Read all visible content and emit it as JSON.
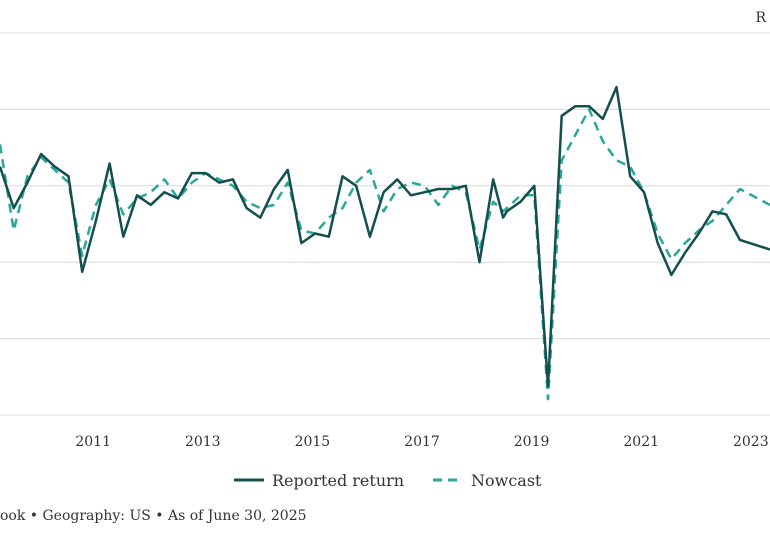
{
  "chart_data": {
    "type": "line",
    "corner_label": "R",
    "x_tick_labels": [
      "2011",
      "2013",
      "2015",
      "2017",
      "2019",
      "2021",
      "2023"
    ],
    "xlim": [
      2009.8,
      2023.85
    ],
    "ylim": [
      -6,
      6
    ],
    "grid": "horizontal",
    "legend_position": "bottom-center",
    "series": [
      {
        "name": "Reported return",
        "color": "#134f4d",
        "style": "solid",
        "points": [
          [
            2009.8,
            1.8
          ],
          [
            2010.05,
            0.5
          ],
          [
            2010.3,
            1.3
          ],
          [
            2010.55,
            2.2
          ],
          [
            2010.8,
            1.8
          ],
          [
            2011.05,
            1.5
          ],
          [
            2011.3,
            -1.5
          ],
          [
            2011.55,
            0.1
          ],
          [
            2011.8,
            1.9
          ],
          [
            2012.05,
            -0.4
          ],
          [
            2012.3,
            0.9
          ],
          [
            2012.55,
            0.6
          ],
          [
            2012.8,
            1.0
          ],
          [
            2013.05,
            0.8
          ],
          [
            2013.3,
            1.6
          ],
          [
            2013.55,
            1.6
          ],
          [
            2013.8,
            1.3
          ],
          [
            2014.05,
            1.4
          ],
          [
            2014.3,
            0.5
          ],
          [
            2014.55,
            0.2
          ],
          [
            2014.8,
            1.1
          ],
          [
            2015.05,
            1.7
          ],
          [
            2015.3,
            -0.6
          ],
          [
            2015.55,
            -0.3
          ],
          [
            2015.8,
            -0.4
          ],
          [
            2016.05,
            1.5
          ],
          [
            2016.3,
            1.2
          ],
          [
            2016.55,
            -0.4
          ],
          [
            2016.8,
            1.0
          ],
          [
            2017.05,
            1.4
          ],
          [
            2017.3,
            0.9
          ],
          [
            2017.55,
            1.0
          ],
          [
            2017.8,
            1.1
          ],
          [
            2018.05,
            1.1
          ],
          [
            2018.3,
            1.2
          ],
          [
            2018.55,
            -1.2
          ],
          [
            2018.8,
            1.4
          ],
          [
            2018.98,
            0.2
          ],
          [
            2019.05,
            0.4
          ],
          [
            2019.3,
            0.7
          ],
          [
            2019.55,
            1.2
          ],
          [
            2019.8,
            -5.1
          ],
          [
            2020.05,
            3.4
          ],
          [
            2020.3,
            3.7
          ],
          [
            2020.55,
            3.7
          ],
          [
            2020.8,
            3.3
          ],
          [
            2021.05,
            4.3
          ],
          [
            2021.3,
            1.5
          ],
          [
            2021.55,
            1.0
          ],
          [
            2021.8,
            -0.6
          ],
          [
            2022.05,
            -1.6
          ],
          [
            2022.3,
            -0.9
          ],
          [
            2022.55,
            -0.3
          ],
          [
            2022.8,
            0.4
          ],
          [
            2023.05,
            0.3
          ],
          [
            2023.3,
            -0.5
          ],
          [
            2023.85,
            -0.8
          ]
        ]
      },
      {
        "name": "Nowcast",
        "color": "#2aa797",
        "style": "dashed",
        "points": [
          [
            2009.8,
            2.5
          ],
          [
            2010.05,
            -0.2
          ],
          [
            2010.3,
            1.5
          ],
          [
            2010.55,
            2.1
          ],
          [
            2010.8,
            1.7
          ],
          [
            2011.05,
            1.3
          ],
          [
            2011.3,
            -1.0
          ],
          [
            2011.55,
            0.6
          ],
          [
            2011.8,
            1.4
          ],
          [
            2012.05,
            0.3
          ],
          [
            2012.3,
            0.8
          ],
          [
            2012.55,
            1.0
          ],
          [
            2012.8,
            1.4
          ],
          [
            2013.05,
            0.8
          ],
          [
            2013.3,
            1.3
          ],
          [
            2013.55,
            1.6
          ],
          [
            2013.8,
            1.4
          ],
          [
            2014.05,
            1.2
          ],
          [
            2014.3,
            0.7
          ],
          [
            2014.55,
            0.5
          ],
          [
            2014.8,
            0.6
          ],
          [
            2015.05,
            1.3
          ],
          [
            2015.3,
            -0.2
          ],
          [
            2015.55,
            -0.3
          ],
          [
            2015.8,
            0.2
          ],
          [
            2016.05,
            0.5
          ],
          [
            2016.3,
            1.3
          ],
          [
            2016.55,
            1.7
          ],
          [
            2016.8,
            0.4
          ],
          [
            2017.05,
            1.1
          ],
          [
            2017.3,
            1.3
          ],
          [
            2017.55,
            1.2
          ],
          [
            2017.8,
            0.6
          ],
          [
            2018.05,
            1.2
          ],
          [
            2018.3,
            1.0
          ],
          [
            2018.55,
            -0.8
          ],
          [
            2018.8,
            0.7
          ],
          [
            2018.98,
            0.4
          ],
          [
            2019.05,
            0.5
          ],
          [
            2019.3,
            0.9
          ],
          [
            2019.55,
            0.9
          ],
          [
            2019.8,
            -5.5
          ],
          [
            2020.05,
            2.0
          ],
          [
            2020.3,
            2.8
          ],
          [
            2020.55,
            3.6
          ],
          [
            2020.8,
            2.6
          ],
          [
            2021.05,
            2.0
          ],
          [
            2021.3,
            1.8
          ],
          [
            2021.55,
            1.0
          ],
          [
            2021.8,
            -0.3
          ],
          [
            2022.05,
            -1.1
          ],
          [
            2022.3,
            -0.6
          ],
          [
            2022.55,
            -0.2
          ],
          [
            2022.8,
            0.1
          ],
          [
            2023.05,
            0.6
          ],
          [
            2023.3,
            1.1
          ],
          [
            2023.85,
            0.6
          ]
        ]
      }
    ]
  },
  "footnote": "ook • Geography: US • As of June 30, 2025"
}
